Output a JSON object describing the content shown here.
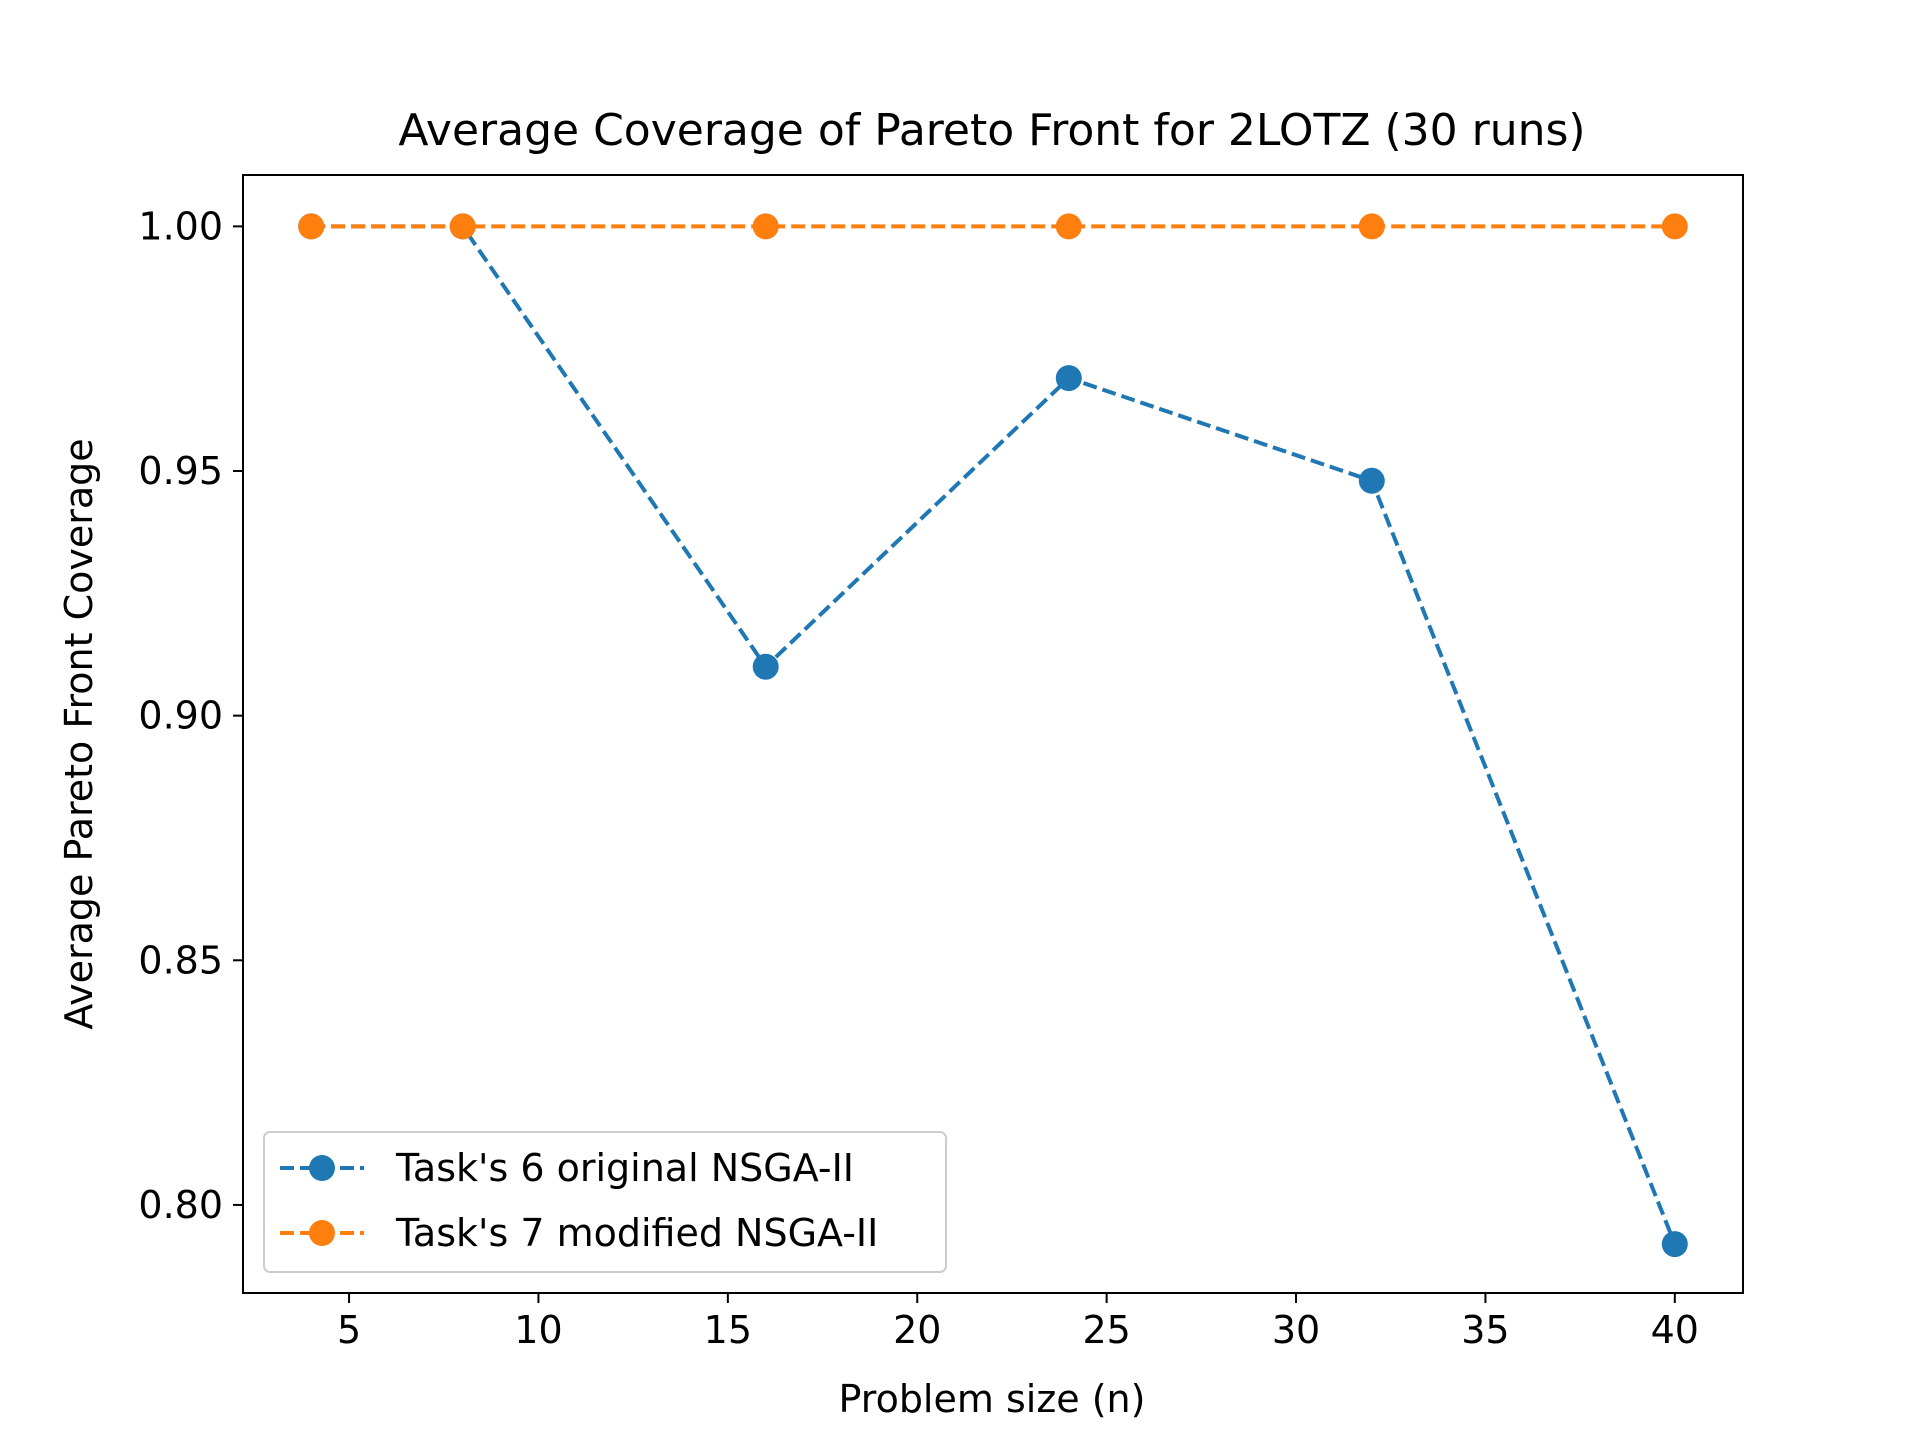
{
  "chart_data": {
    "type": "line",
    "title": "Average Coverage of Pareto Front for 2LOTZ (30 runs)",
    "xlabel": "Problem size (n)",
    "ylabel": "Average Pareto Front Coverage",
    "xlim": [
      2.2,
      41.8
    ],
    "ylim": [
      0.782,
      1.0105
    ],
    "xticks": [
      5,
      10,
      15,
      20,
      25,
      30,
      35,
      40
    ],
    "yticks": [
      0.8,
      0.85,
      0.9,
      0.95,
      1.0
    ],
    "xtick_labels": [
      "5",
      "10",
      "15",
      "20",
      "25",
      "30",
      "35",
      "40"
    ],
    "ytick_labels": [
      "0.80",
      "0.85",
      "0.90",
      "0.95",
      "1.00"
    ],
    "grid": false,
    "legend_position": "lower-left",
    "series": [
      {
        "name": "Task's 6 original NSGA-II",
        "color": "#1f77b4",
        "style": "dashed",
        "marker": "circle",
        "x": [
          4,
          8,
          16,
          24,
          32,
          40
        ],
        "y": [
          1.0,
          1.0,
          0.91,
          0.969,
          0.948,
          0.792
        ]
      },
      {
        "name": "Task's 7 modified NSGA-II",
        "color": "#ff7f0e",
        "style": "dashed",
        "marker": "circle",
        "x": [
          4,
          8,
          16,
          24,
          32,
          40
        ],
        "y": [
          1.0,
          1.0,
          1.0,
          1.0,
          1.0,
          1.0
        ]
      }
    ]
  }
}
